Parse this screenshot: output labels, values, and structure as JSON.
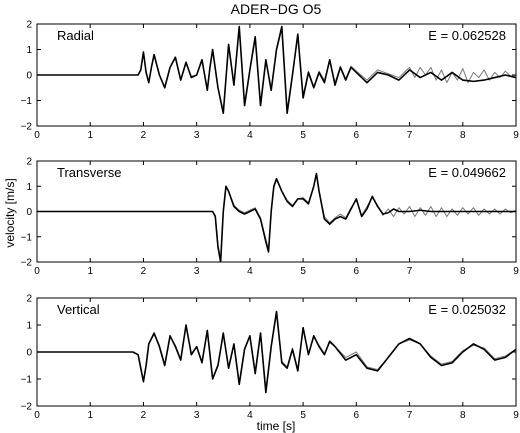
{
  "figure": {
    "title": "ADER−DG O5",
    "xlabel": "time [s]",
    "ylabel": "velocity [m/s]"
  },
  "chart_data": [
    {
      "type": "line",
      "label": "Radial",
      "annotation": "E = 0.062528",
      "xlim": [
        0,
        9
      ],
      "ylim": [
        -2,
        2
      ],
      "xticks": [
        "0",
        "1",
        "2",
        "3",
        "4",
        "5",
        "6",
        "7",
        "8",
        "9"
      ],
      "yticks": [
        "2",
        "1",
        "0",
        "−1",
        "−2"
      ],
      "grid": false,
      "series": [
        {
          "color": "#000000",
          "x": [
            0,
            1.5,
            1.9,
            1.95,
            2.0,
            2.05,
            2.1,
            2.15,
            2.2,
            2.3,
            2.4,
            2.5,
            2.6,
            2.7,
            2.8,
            2.9,
            3.0,
            3.1,
            3.2,
            3.25,
            3.3,
            3.4,
            3.5,
            3.6,
            3.7,
            3.8,
            3.9,
            4.0,
            4.1,
            4.2,
            4.3,
            4.4,
            4.5,
            4.6,
            4.7,
            4.8,
            4.9,
            5.0,
            5.1,
            5.2,
            5.3,
            5.4,
            5.5,
            5.6,
            5.7,
            5.8,
            5.9,
            6.0,
            6.2,
            6.4,
            6.6,
            6.8,
            7.0,
            7.2,
            7.4,
            7.6,
            7.8,
            8.0,
            8.2,
            8.4,
            8.6,
            8.8,
            9.0
          ],
          "y": [
            0,
            0,
            0,
            0.2,
            0.9,
            0.1,
            -0.3,
            0.3,
            0.8,
            0.0,
            -0.5,
            0.3,
            0.7,
            -0.2,
            0.5,
            -0.1,
            0.0,
            0.6,
            -0.6,
            0.3,
            1.0,
            -0.5,
            -1.5,
            1.2,
            -0.4,
            1.9,
            -1.2,
            0.2,
            1.5,
            -1.2,
            0.6,
            -0.6,
            1.0,
            1.9,
            -1.5,
            0.0,
            1.6,
            -0.9,
            0.1,
            -0.5,
            0.1,
            -0.3,
            0.6,
            -0.4,
            0.3,
            -0.2,
            0.3,
            0.1,
            -0.3,
            0.1,
            0.0,
            -0.2,
            0.2,
            -0.1,
            0.1,
            -0.2,
            0.1,
            -0.2,
            -0.25,
            -0.2,
            -0.1,
            0.0,
            -0.1
          ]
        },
        {
          "color": "#777777",
          "x": [
            0,
            1.5,
            1.9,
            1.95,
            2.0,
            2.05,
            2.1,
            2.15,
            2.2,
            2.3,
            2.4,
            2.5,
            2.6,
            2.7,
            2.8,
            2.9,
            3.0,
            3.1,
            3.2,
            3.25,
            3.3,
            3.4,
            3.5,
            3.6,
            3.7,
            3.8,
            3.9,
            4.0,
            4.1,
            4.2,
            4.3,
            4.4,
            4.5,
            4.6,
            4.7,
            4.8,
            4.9,
            5.0,
            5.1,
            5.2,
            5.3,
            5.4,
            5.5,
            5.6,
            5.7,
            5.8,
            5.9,
            6.0,
            6.2,
            6.4,
            6.6,
            6.8,
            7.0,
            7.1,
            7.2,
            7.3,
            7.4,
            7.5,
            7.6,
            7.7,
            7.8,
            7.9,
            8.0,
            8.1,
            8.2,
            8.3,
            8.4,
            8.5,
            8.6,
            8.7,
            8.8,
            8.9,
            9.0
          ],
          "y": [
            0,
            0,
            0,
            0.2,
            0.85,
            0.15,
            -0.25,
            0.3,
            0.75,
            0.0,
            -0.45,
            0.3,
            0.65,
            -0.2,
            0.45,
            -0.05,
            0.0,
            0.55,
            -0.55,
            0.3,
            0.95,
            -0.5,
            -1.4,
            1.15,
            -0.35,
            1.85,
            -1.1,
            0.2,
            1.4,
            -1.1,
            0.55,
            -0.55,
            0.95,
            1.8,
            -1.4,
            0.05,
            1.5,
            -0.8,
            0.15,
            -0.45,
            0.15,
            -0.2,
            0.55,
            -0.3,
            0.35,
            -0.15,
            0.35,
            0.15,
            -0.2,
            0.2,
            0.05,
            -0.1,
            0.3,
            -0.1,
            0.3,
            0.0,
            0.3,
            -0.2,
            0.2,
            -0.3,
            0.1,
            -0.2,
            0.25,
            -0.3,
            0.1,
            -0.1,
            0.2,
            -0.2,
            0.1,
            -0.1,
            0.15,
            -0.05,
            0.0
          ]
        }
      ]
    },
    {
      "type": "line",
      "label": "Transverse",
      "annotation": "E = 0.049662",
      "xlim": [
        0,
        9
      ],
      "ylim": [
        -2,
        2
      ],
      "xticks": [
        "0",
        "1",
        "2",
        "3",
        "4",
        "5",
        "6",
        "7",
        "8",
        "9"
      ],
      "yticks": [
        "2",
        "1",
        "0",
        "−1",
        "−2"
      ],
      "grid": false,
      "series": [
        {
          "color": "#000000",
          "x": [
            0,
            3.3,
            3.35,
            3.4,
            3.45,
            3.5,
            3.55,
            3.6,
            3.7,
            3.8,
            3.9,
            4.0,
            4.1,
            4.2,
            4.3,
            4.35,
            4.4,
            4.45,
            4.5,
            4.6,
            4.7,
            4.8,
            4.9,
            5.0,
            5.1,
            5.2,
            5.25,
            5.3,
            5.4,
            5.5,
            5.6,
            5.7,
            5.8,
            5.9,
            6.0,
            6.1,
            6.2,
            6.3,
            6.4,
            6.5,
            6.6,
            6.7,
            6.8,
            7.0,
            7.2,
            7.4,
            7.6,
            7.8,
            8.0,
            8.2,
            8.4,
            8.6,
            8.8,
            9.0
          ],
          "y": [
            0,
            0,
            -0.2,
            -1.4,
            -2.0,
            0.0,
            1.0,
            0.8,
            0.2,
            0.0,
            -0.1,
            0.0,
            0.1,
            -0.3,
            -1.2,
            -1.6,
            0.0,
            1.0,
            1.3,
            0.8,
            0.4,
            0.2,
            0.5,
            0.5,
            0.3,
            1.0,
            1.5,
            0.8,
            -0.3,
            -0.5,
            -0.3,
            -0.2,
            -0.3,
            0.1,
            0.5,
            -0.2,
            0.1,
            0.6,
            0.2,
            -0.1,
            -0.05,
            0.1,
            0.0,
            0.0,
            0.05,
            0.0,
            0.0,
            0.0,
            0.0,
            0.0,
            0.0,
            0.0,
            0.0,
            0.0
          ]
        },
        {
          "color": "#777777",
          "x": [
            0,
            3.3,
            3.35,
            3.4,
            3.45,
            3.5,
            3.55,
            3.6,
            3.7,
            3.8,
            3.9,
            4.0,
            4.1,
            4.2,
            4.3,
            4.35,
            4.4,
            4.45,
            4.5,
            4.6,
            4.7,
            4.8,
            4.9,
            5.0,
            5.1,
            5.2,
            5.25,
            5.3,
            5.4,
            5.5,
            5.6,
            5.7,
            5.8,
            5.9,
            6.0,
            6.1,
            6.2,
            6.3,
            6.4,
            6.5,
            6.6,
            6.7,
            6.8,
            6.9,
            7.0,
            7.1,
            7.2,
            7.3,
            7.4,
            7.5,
            7.6,
            7.7,
            7.8,
            7.9,
            8.0,
            8.1,
            8.2,
            8.3,
            8.4,
            8.5,
            8.6,
            8.7,
            8.8,
            8.9,
            9.0
          ],
          "y": [
            0,
            0,
            -0.15,
            -1.3,
            -1.9,
            0.05,
            0.95,
            0.8,
            0.25,
            0.05,
            -0.05,
            0.05,
            0.15,
            -0.25,
            -1.1,
            -1.5,
            0.05,
            0.95,
            1.25,
            0.8,
            0.45,
            0.25,
            0.5,
            0.55,
            0.35,
            1.0,
            1.45,
            0.8,
            -0.2,
            -0.45,
            -0.25,
            -0.1,
            -0.25,
            0.15,
            0.45,
            -0.15,
            0.2,
            0.55,
            0.25,
            -0.15,
            0.1,
            -0.2,
            0.15,
            -0.1,
            0.2,
            -0.2,
            0.15,
            -0.15,
            0.2,
            -0.2,
            0.15,
            -0.2,
            0.1,
            -0.15,
            0.15,
            -0.1,
            0.15,
            -0.15,
            0.1,
            -0.1,
            0.1,
            -0.1,
            0.1,
            -0.05,
            0.05
          ]
        }
      ]
    },
    {
      "type": "line",
      "label": "Vertical",
      "annotation": "E = 0.025032",
      "xlim": [
        0,
        9
      ],
      "ylim": [
        -2,
        2
      ],
      "xticks": [
        "0",
        "1",
        "2",
        "3",
        "4",
        "5",
        "6",
        "7",
        "8",
        "9"
      ],
      "yticks": [
        "2",
        "1",
        "0",
        "−1",
        "−2"
      ],
      "grid": false,
      "series": [
        {
          "color": "#000000",
          "x": [
            0,
            1.8,
            1.9,
            1.95,
            2.0,
            2.05,
            2.1,
            2.2,
            2.3,
            2.4,
            2.5,
            2.6,
            2.7,
            2.8,
            2.9,
            3.0,
            3.1,
            3.2,
            3.3,
            3.4,
            3.5,
            3.6,
            3.7,
            3.8,
            3.9,
            4.0,
            4.1,
            4.2,
            4.3,
            4.4,
            4.5,
            4.6,
            4.7,
            4.8,
            4.9,
            5.0,
            5.1,
            5.2,
            5.3,
            5.4,
            5.5,
            5.6,
            5.8,
            6.0,
            6.2,
            6.4,
            6.6,
            6.8,
            7.0,
            7.2,
            7.4,
            7.6,
            7.8,
            8.0,
            8.2,
            8.4,
            8.6,
            8.8,
            9.0
          ],
          "y": [
            0,
            0,
            -0.1,
            -0.6,
            -1.1,
            -0.5,
            0.3,
            0.7,
            0.2,
            -0.5,
            0.6,
            0.2,
            -0.3,
            1.0,
            -0.1,
            0.2,
            -0.4,
            0.8,
            -1.0,
            -0.5,
            0.7,
            -0.6,
            0.3,
            -1.2,
            0.1,
            0.6,
            -0.8,
            0.7,
            -1.5,
            0.2,
            1.5,
            -0.4,
            -0.6,
            0.1,
            -0.7,
            0.9,
            -0.1,
            0.6,
            0.2,
            -0.1,
            0.4,
            0.2,
            -0.3,
            -0.1,
            -0.6,
            -0.7,
            -0.2,
            0.3,
            0.5,
            0.3,
            -0.2,
            -0.5,
            -0.4,
            0.0,
            0.3,
            0.1,
            -0.3,
            -0.2,
            0.1
          ]
        },
        {
          "color": "#777777",
          "x": [
            0,
            1.8,
            1.9,
            1.95,
            2.0,
            2.05,
            2.1,
            2.2,
            2.3,
            2.4,
            2.5,
            2.6,
            2.7,
            2.8,
            2.9,
            3.0,
            3.1,
            3.2,
            3.3,
            3.4,
            3.5,
            3.6,
            3.7,
            3.8,
            3.9,
            4.0,
            4.1,
            4.2,
            4.3,
            4.4,
            4.5,
            4.6,
            4.7,
            4.8,
            4.9,
            5.0,
            5.1,
            5.2,
            5.3,
            5.4,
            5.5,
            5.6,
            5.8,
            6.0,
            6.2,
            6.4,
            6.6,
            6.8,
            7.0,
            7.2,
            7.4,
            7.6,
            7.8,
            8.0,
            8.2,
            8.4,
            8.6,
            8.8,
            9.0
          ],
          "y": [
            0,
            0,
            -0.1,
            -0.55,
            -1.05,
            -0.45,
            0.3,
            0.65,
            0.25,
            -0.45,
            0.55,
            0.25,
            -0.25,
            0.95,
            -0.05,
            0.2,
            -0.35,
            0.75,
            -0.95,
            -0.45,
            0.65,
            -0.55,
            0.3,
            -1.1,
            0.15,
            0.6,
            -0.7,
            0.7,
            -1.4,
            0.2,
            1.4,
            -0.35,
            -0.55,
            0.15,
            -0.65,
            0.85,
            -0.05,
            0.55,
            0.25,
            -0.05,
            0.35,
            0.2,
            -0.2,
            0.0,
            -0.55,
            -0.65,
            -0.2,
            0.3,
            0.45,
            0.3,
            -0.15,
            -0.45,
            -0.35,
            0.05,
            0.25,
            0.15,
            -0.25,
            -0.15,
            0.1
          ]
        }
      ]
    }
  ]
}
